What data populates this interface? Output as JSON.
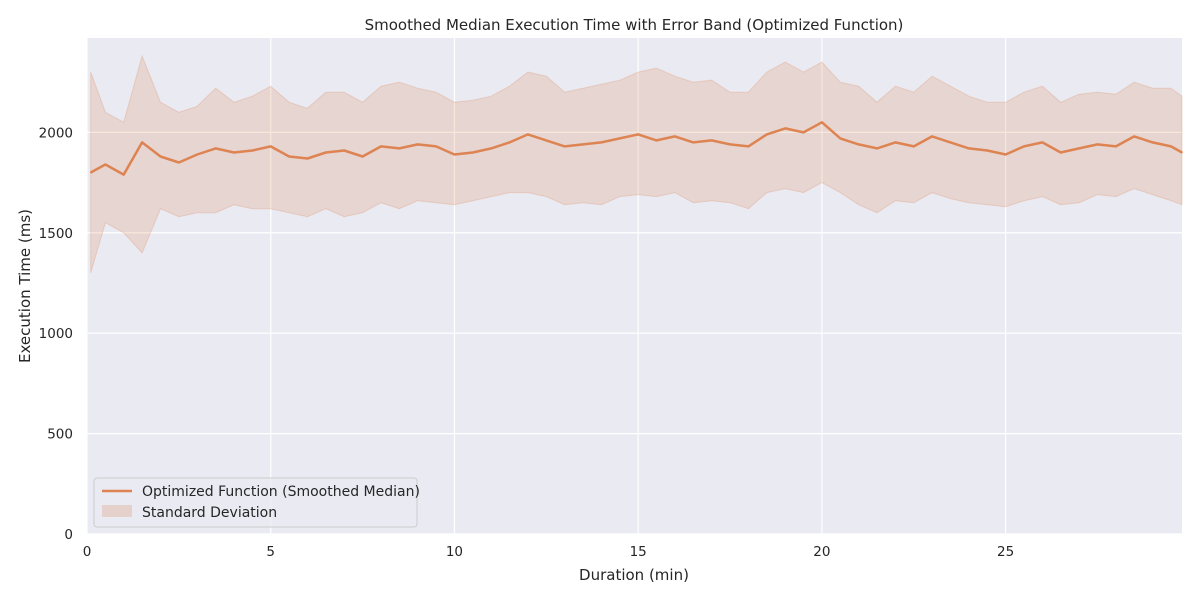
{
  "chart_data": {
    "type": "line",
    "title": "Smoothed Median Execution Time with Error Band (Optimized Function)",
    "xlabel": "Duration (min)",
    "ylabel": "Execution Time (ms)",
    "xlim": [
      0,
      29.8
    ],
    "ylim": [
      0,
      2470
    ],
    "x_ticks": [
      0,
      5,
      10,
      15,
      20,
      25
    ],
    "y_ticks": [
      0,
      500,
      1000,
      1500,
      2000
    ],
    "grid": true,
    "legend_position": "lower-left",
    "colors": {
      "line": "#dd8452",
      "band": "#dd8452",
      "plot_background": "#eaeaf2",
      "grid": "#ffffff"
    },
    "series": [
      {
        "name": "Optimized Function (Smoothed Median)",
        "kind": "line",
        "x": [
          0.1,
          0.5,
          1.0,
          1.5,
          2.0,
          2.5,
          3.0,
          3.5,
          4.0,
          4.5,
          5.0,
          5.5,
          6.0,
          6.5,
          7.0,
          7.5,
          8.0,
          8.5,
          9.0,
          9.5,
          10.0,
          10.5,
          11.0,
          11.5,
          12.0,
          12.5,
          13.0,
          13.5,
          14.0,
          14.5,
          15.0,
          15.5,
          16.0,
          16.5,
          17.0,
          17.5,
          18.0,
          18.5,
          19.0,
          19.5,
          20.0,
          20.5,
          21.0,
          21.5,
          22.0,
          22.5,
          23.0,
          23.5,
          24.0,
          24.5,
          25.0,
          25.5,
          26.0,
          26.5,
          27.0,
          27.5,
          28.0,
          28.5,
          29.0,
          29.5,
          29.8
        ],
        "values": [
          1800,
          1840,
          1790,
          1950,
          1880,
          1850,
          1890,
          1920,
          1900,
          1910,
          1930,
          1880,
          1870,
          1900,
          1910,
          1880,
          1930,
          1920,
          1940,
          1930,
          1890,
          1900,
          1920,
          1950,
          1990,
          1960,
          1930,
          1940,
          1950,
          1970,
          1990,
          1960,
          1980,
          1950,
          1960,
          1940,
          1930,
          1990,
          2020,
          2000,
          2050,
          1970,
          1940,
          1920,
          1950,
          1930,
          1980,
          1950,
          1920,
          1910,
          1890,
          1930,
          1950,
          1900,
          1920,
          1940,
          1930,
          1980,
          1950,
          1930,
          1900
        ]
      },
      {
        "name": "Standard Deviation",
        "kind": "band",
        "x": [
          0.1,
          0.5,
          1.0,
          1.5,
          2.0,
          2.5,
          3.0,
          3.5,
          4.0,
          4.5,
          5.0,
          5.5,
          6.0,
          6.5,
          7.0,
          7.5,
          8.0,
          8.5,
          9.0,
          9.5,
          10.0,
          10.5,
          11.0,
          11.5,
          12.0,
          12.5,
          13.0,
          13.5,
          14.0,
          14.5,
          15.0,
          15.5,
          16.0,
          16.5,
          17.0,
          17.5,
          18.0,
          18.5,
          19.0,
          19.5,
          20.0,
          20.5,
          21.0,
          21.5,
          22.0,
          22.5,
          23.0,
          23.5,
          24.0,
          24.5,
          25.0,
          25.5,
          26.0,
          26.5,
          27.0,
          27.5,
          28.0,
          28.5,
          29.0,
          29.5,
          29.8
        ],
        "upper": [
          2300,
          2100,
          2050,
          2380,
          2150,
          2100,
          2130,
          2220,
          2150,
          2180,
          2230,
          2150,
          2120,
          2200,
          2200,
          2150,
          2230,
          2250,
          2220,
          2200,
          2150,
          2160,
          2180,
          2230,
          2300,
          2280,
          2200,
          2220,
          2240,
          2260,
          2300,
          2320,
          2280,
          2250,
          2260,
          2200,
          2200,
          2300,
          2350,
          2300,
          2350,
          2250,
          2230,
          2150,
          2230,
          2200,
          2280,
          2230,
          2180,
          2150,
          2150,
          2200,
          2230,
          2150,
          2190,
          2200,
          2190,
          2250,
          2220,
          2220,
          2180
        ],
        "lower": [
          1300,
          1550,
          1500,
          1400,
          1620,
          1580,
          1600,
          1600,
          1640,
          1620,
          1620,
          1600,
          1580,
          1620,
          1580,
          1600,
          1650,
          1620,
          1660,
          1650,
          1640,
          1660,
          1680,
          1700,
          1700,
          1680,
          1640,
          1650,
          1640,
          1680,
          1690,
          1680,
          1700,
          1650,
          1660,
          1650,
          1620,
          1700,
          1720,
          1700,
          1750,
          1700,
          1640,
          1600,
          1660,
          1650,
          1700,
          1670,
          1650,
          1640,
          1630,
          1660,
          1680,
          1640,
          1650,
          1690,
          1680,
          1720,
          1690,
          1660,
          1640
        ]
      }
    ]
  }
}
